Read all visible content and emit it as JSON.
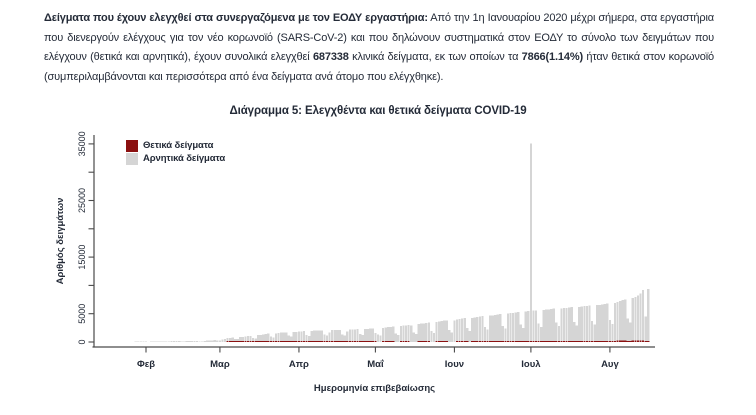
{
  "document": {
    "paragraph": {
      "segments": [
        {
          "text": "Δείγματα που έχουν ελεγχθεί στα συνεργαζόμενα με τον ΕΟΔΥ εργαστήρια:",
          "bold": true
        },
        {
          "text": " Από την 1η Ιανουαρίου 2020 μέχρι σήμερα, στα εργαστήρια που διενεργούν ελέγχους για τον νέο κορωνοϊό (SARS-CoV-2) και που δηλώνουν συστηματικά στον ΕΟΔΥ το σύνολο των δειγμάτων που ελέγχουν (θετικά και αρνητικά), έχουν συνολικά ελεγχθεί ",
          "bold": false
        },
        {
          "text": "687338",
          "bold": true
        },
        {
          "text": " κλινικά δείγματα, εκ των οποίων τα ",
          "bold": false
        },
        {
          "text": "7866(1.14%)",
          "bold": true
        },
        {
          "text": " ήταν θετικά στον κορωνοϊό (συμπεριλαμβάνονται και περισσότερα από ένα δείγματα ανά άτομο που ελέγχθηκε).",
          "bold": false
        }
      ]
    },
    "stated_totals": {
      "total_tested": "687338",
      "positive": "7866",
      "positive_rate": "1.14%"
    }
  },
  "colors": {
    "positive_bar": "#8B1010",
    "negative_bar": "#D5D5D5",
    "text": "#242B38",
    "axis": "#4A4A4A"
  },
  "chart_data": {
    "type": "bar",
    "stacked": true,
    "title": "Διάγραμμα 5: Ελεγχθέντα και θετικά δείγματα COVID-19",
    "xlabel": "Ημερομηνία επιβεβαίωσης",
    "ylabel": "Αριθμός δειγμάτων",
    "ylim": [
      0,
      35000
    ],
    "grid": false,
    "legend_position": "top-left",
    "y_ticks": [
      0,
      5000,
      10000,
      15000,
      20000,
      25000,
      30000,
      35000
    ],
    "y_tick_labels": [
      "0",
      "5000",
      "",
      "15000",
      "",
      "25000",
      "",
      "35000"
    ],
    "x_tick_labels": [
      "Φεβ",
      "Μαρ",
      "Απρ",
      "Μαΐ",
      "Ιουν",
      "Ιουλ",
      "Αυγ"
    ],
    "start_date": "2020-01-26",
    "end_date": "2020-08-16",
    "spike_note": {
      "date": "2020-07-01",
      "total_samples": 35000
    },
    "legend": [
      {
        "label": "Θετικά δείγματα",
        "color": "#8B1010"
      },
      {
        "label": "Αρνητικά δείγματα",
        "color": "#D5D5D5"
      }
    ],
    "series": [
      {
        "name": "Θετικά δείγματα",
        "color": "#8B1010",
        "values": [
          0,
          0,
          0,
          0,
          0,
          0,
          0,
          0,
          0,
          0,
          0,
          0,
          0,
          0,
          0,
          0,
          0,
          0,
          0,
          0,
          0,
          0,
          0,
          0,
          0,
          0,
          0,
          0,
          0,
          0,
          0,
          1,
          2,
          1,
          3,
          4,
          3,
          7,
          10,
          21,
          31,
          17,
          21,
          26,
          43,
          48,
          35,
          62,
          74,
          65,
          48,
          43,
          51,
          70,
          85,
          60,
          55,
          71,
          82,
          88,
          91,
          74,
          68,
          56,
          82,
          90,
          74,
          71,
          68,
          96,
          52,
          43,
          56,
          77,
          81,
          70,
          46,
          36,
          31,
          25,
          47,
          55,
          61,
          52,
          33,
          28,
          41,
          56,
          48,
          39,
          29,
          18,
          26,
          31,
          24,
          20,
          12,
          8,
          6,
          15,
          18,
          21,
          16,
          10,
          7,
          5,
          19,
          23,
          17,
          14,
          9,
          6,
          4,
          11,
          16,
          21,
          18,
          12,
          8,
          5,
          13,
          17,
          22,
          19,
          14,
          9,
          6,
          7,
          11,
          15,
          19,
          24,
          13,
          9,
          28,
          32,
          37,
          29,
          21,
          14,
          10,
          33,
          41,
          48,
          39,
          31,
          22,
          16,
          44,
          52,
          58,
          46,
          35,
          26,
          19,
          55,
          63,
          57,
          48,
          42,
          31,
          25,
          62,
          68,
          74,
          81,
          88,
          52,
          40,
          94,
          101,
          110,
          118,
          125,
          78,
          60,
          132,
          140,
          148,
          156,
          165,
          95,
          72,
          174,
          183,
          192,
          202,
          210,
          130,
          105,
          218,
          226,
          235,
          242,
          250,
          160,
          125,
          258,
          266,
          274,
          282,
          290,
          175,
          205
        ]
      },
      {
        "name": "Αρνητικά δείγματα",
        "color": "#D5D5D5",
        "values": [
          25,
          40,
          55,
          50,
          60,
          70,
          65,
          45,
          90,
          110,
          105,
          120,
          115,
          80,
          60,
          130,
          145,
          140,
          155,
          150,
          95,
          75,
          170,
          185,
          180,
          195,
          190,
          110,
          90,
          210,
          230,
          260,
          290,
          310,
          220,
          260,
          420,
          480,
          520,
          560,
          610,
          380,
          330,
          700,
          760,
          820,
          880,
          930,
          560,
          480,
          1050,
          1120,
          1180,
          1240,
          1300,
          800,
          680,
          1380,
          1430,
          1490,
          1520,
          1560,
          950,
          820,
          1600,
          1630,
          1680,
          1720,
          1750,
          1050,
          900,
          1800,
          1830,
          1860,
          1890,
          1910,
          1150,
          980,
          1500,
          1940,
          1960,
          1980,
          2000,
          1200,
          1020,
          1700,
          2020,
          2050,
          2080,
          2100,
          1250,
          1060,
          2150,
          2180,
          2200,
          2230,
          1400,
          1300,
          1100,
          2300,
          2380,
          2450,
          2520,
          2580,
          1500,
          1250,
          2650,
          2720,
          2800,
          2870,
          2930,
          1700,
          1400,
          3000,
          3080,
          3150,
          3230,
          3300,
          1900,
          1550,
          3380,
          3450,
          3520,
          3600,
          3680,
          2100,
          1700,
          3750,
          3820,
          3900,
          3970,
          4050,
          2300,
          1900,
          4100,
          4180,
          4250,
          4330,
          4400,
          2500,
          2050,
          4480,
          4550,
          4630,
          4700,
          4780,
          2700,
          2200,
          4850,
          4930,
          5000,
          5080,
          5150,
          2900,
          2350,
          5230,
          5300,
          34950,
          5400,
          5450,
          3100,
          2500,
          5500,
          5560,
          5610,
          5670,
          5720,
          3250,
          2650,
          5780,
          5830,
          5890,
          5940,
          6000,
          3400,
          2750,
          6050,
          6110,
          6160,
          6220,
          6270,
          3550,
          2900,
          6330,
          6380,
          6440,
          6490,
          6550,
          3700,
          3000,
          6700,
          6850,
          7000,
          7150,
          7300,
          4000,
          3300,
          7500,
          7700,
          7900,
          8300,
          8900,
          4300,
          9200
        ]
      }
    ]
  }
}
